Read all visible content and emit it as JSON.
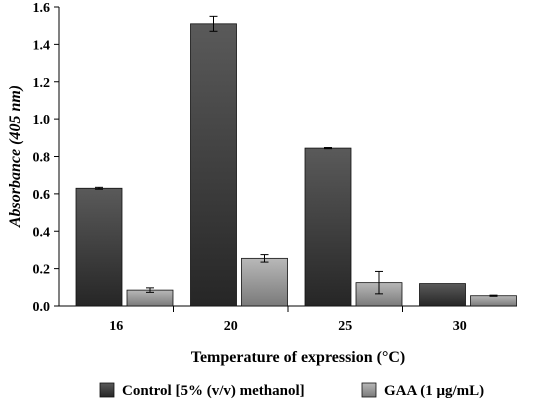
{
  "chart_data": {
    "type": "bar",
    "categories": [
      "16",
      "20",
      "25",
      "30"
    ],
    "series": [
      {
        "name": "Control [5% (v/v) methanol]",
        "values": [
          0.63,
          1.51,
          0.845,
          0.12
        ],
        "errors": [
          0.005,
          0.04,
          0.003,
          0.0
        ],
        "color": "#3c3c3c"
      },
      {
        "name": "GAA (1 μg/mL)",
        "values": [
          0.085,
          0.255,
          0.125,
          0.055
        ],
        "errors": [
          0.012,
          0.02,
          0.06,
          0.003
        ],
        "color": "#9a9a9a"
      }
    ],
    "xlabel": "Temperature of expression (°C)",
    "ylabel": "Absorbance (405 nm)",
    "ylim": [
      0,
      1.6
    ],
    "yticks": [
      "0.0",
      "0.2",
      "0.4",
      "0.6",
      "0.8",
      "1.0",
      "1.2",
      "1.4",
      "1.6"
    ],
    "grid": false,
    "legend_position": "bottom"
  }
}
